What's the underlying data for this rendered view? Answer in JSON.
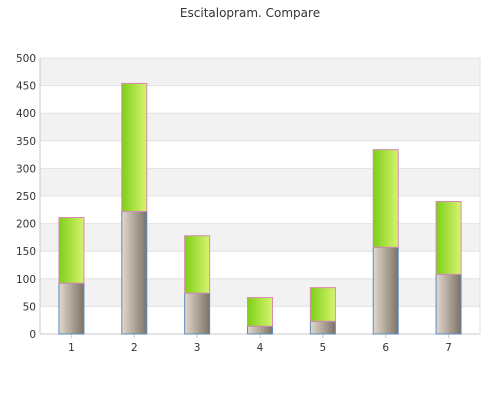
{
  "chart_data": {
    "type": "bar",
    "stacked": true,
    "title": "Escitalopram. Compare",
    "xlabel": "",
    "ylabel": "",
    "categories": [
      "1",
      "2",
      "3",
      "4",
      "5",
      "6",
      "7"
    ],
    "series": [
      {
        "values": [
          92,
          222,
          74,
          14,
          23,
          157,
          108
        ]
      },
      {
        "values": [
          119,
          232,
          104,
          52,
          61,
          177,
          132
        ]
      }
    ],
    "ylim": [
      0,
      500
    ],
    "yticks": [
      0,
      50,
      100,
      150,
      200,
      250,
      300,
      350,
      400,
      450,
      500
    ],
    "grid": true,
    "legend": "none",
    "colors": {
      "lower_fill_dark": "#7c7266",
      "lower_fill_light": "#e2d8cc",
      "lower_edge": "#5b8bc2",
      "upper_fill_dark": "#7ecf18",
      "upper_fill_light": "#d6f470",
      "upper_edge": "#d88ab0",
      "band": "#f2f2f2",
      "grid": "#e2e2e2",
      "axis": "#c8c8c8"
    }
  }
}
